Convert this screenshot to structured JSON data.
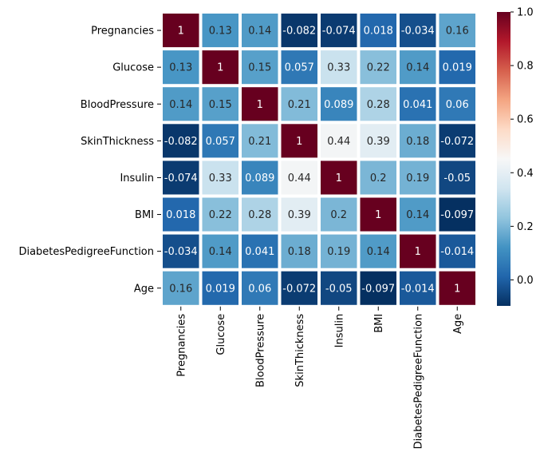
{
  "chart_data": {
    "type": "heatmap",
    "title": "",
    "xlabel": "",
    "ylabel": "",
    "labels": [
      "Pregnancies",
      "Glucose",
      "BloodPressure",
      "SkinThickness",
      "Insulin",
      "BMI",
      "DiabetesPedigreeFunction",
      "Age"
    ],
    "values": [
      [
        1,
        0.13,
        0.14,
        -0.082,
        -0.074,
        0.018,
        -0.034,
        0.16
      ],
      [
        0.13,
        1,
        0.15,
        0.057,
        0.33,
        0.22,
        0.14,
        0.019
      ],
      [
        0.14,
        0.15,
        1,
        0.21,
        0.089,
        0.28,
        0.041,
        0.06
      ],
      [
        -0.082,
        0.057,
        0.21,
        1,
        0.44,
        0.39,
        0.18,
        -0.072
      ],
      [
        -0.074,
        0.33,
        0.089,
        0.44,
        1,
        0.2,
        0.19,
        -0.05
      ],
      [
        0.018,
        0.22,
        0.28,
        0.39,
        0.2,
        1,
        0.14,
        -0.097
      ],
      [
        -0.034,
        0.14,
        0.041,
        0.18,
        0.19,
        0.14,
        1,
        -0.014
      ],
      [
        0.16,
        0.019,
        0.06,
        -0.072,
        -0.05,
        -0.097,
        -0.014,
        1
      ]
    ],
    "cell_labels": [
      [
        "1",
        "0.13",
        "0.14",
        "-0.082",
        "-0.074",
        "0.018",
        "-0.034",
        "0.16"
      ],
      [
        "0.13",
        "1",
        "0.15",
        "0.057",
        "0.33",
        "0.22",
        "0.14",
        "0.019"
      ],
      [
        "0.14",
        "0.15",
        "1",
        "0.21",
        "0.089",
        "0.28",
        "0.041",
        "0.06"
      ],
      [
        "-0.082",
        "0.057",
        "0.21",
        "1",
        "0.44",
        "0.39",
        "0.18",
        "-0.072"
      ],
      [
        "-0.074",
        "0.33",
        "0.089",
        "0.44",
        "1",
        "0.2",
        "0.19",
        "-0.05"
      ],
      [
        "0.018",
        "0.22",
        "0.28",
        "0.39",
        "0.2",
        "1",
        "0.14",
        "-0.097"
      ],
      [
        "-0.034",
        "0.14",
        "0.041",
        "0.18",
        "0.19",
        "0.14",
        "1",
        "-0.014"
      ],
      [
        "0.16",
        "0.019",
        "0.06",
        "-0.072",
        "-0.05",
        "-0.097",
        "-0.014",
        "1"
      ]
    ],
    "colormap": "RdBu_r",
    "vmin": -0.097,
    "vmax": 1.0,
    "colorbar_ticks": [
      0.0,
      0.2,
      0.4,
      0.6,
      0.8,
      1.0
    ],
    "colorbar_tick_labels": [
      "0.0",
      "0.2",
      "0.4",
      "0.6",
      "0.8",
      "1.0"
    ],
    "cell_separator_color": "#ffffff",
    "grid": false,
    "legend": "colorbar-right"
  }
}
